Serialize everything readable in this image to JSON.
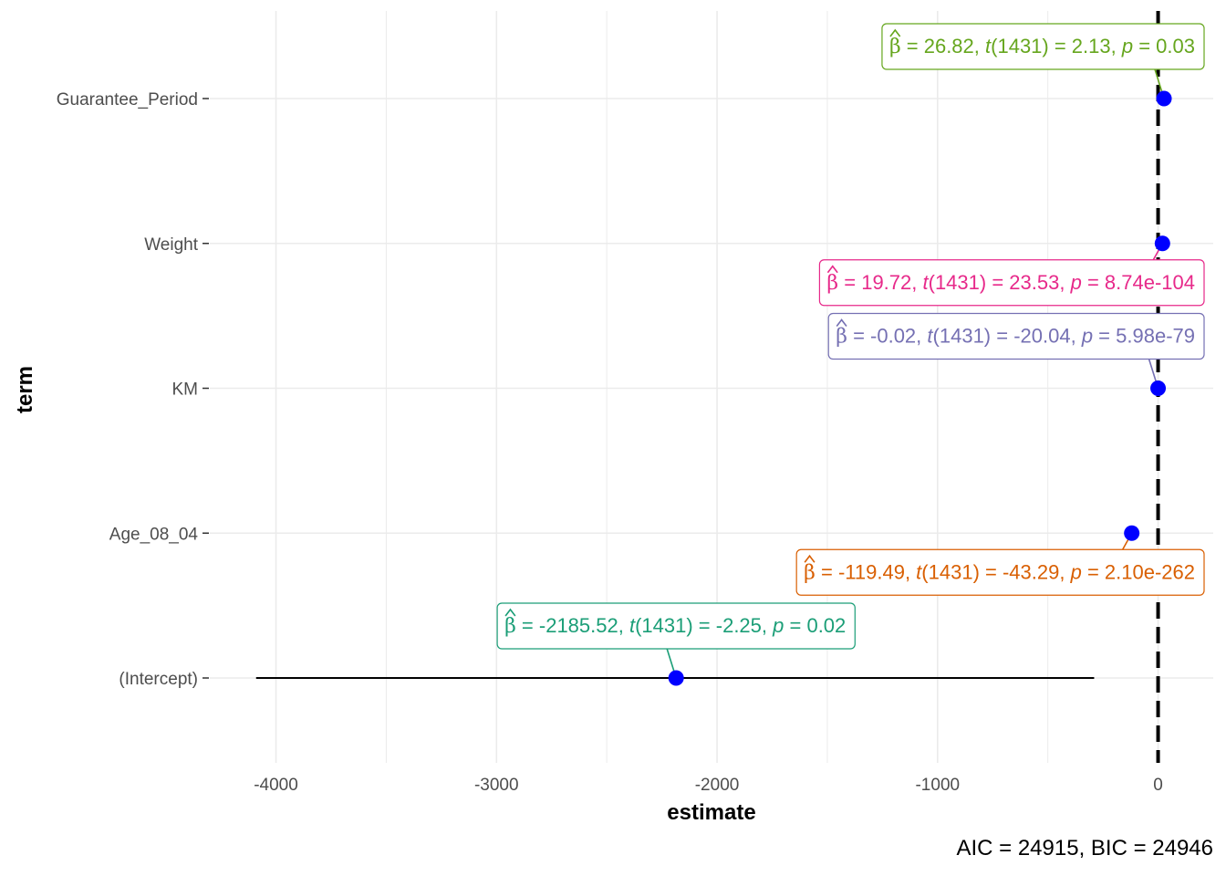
{
  "chart_data": {
    "type": "dot-whisker",
    "xlabel": "estimate",
    "ylabel": "term",
    "xlim": [
      -4300,
      250
    ],
    "x_ticks": [
      -4000,
      -3000,
      -2000,
      -1000,
      0
    ],
    "x_tick_labels": [
      "-4000",
      "-3000",
      "-2000",
      "-1000",
      "0"
    ],
    "reference_line": 0,
    "grid": true,
    "caption": "AIC = 24915, BIC = 24946",
    "point_color": "#0000ff",
    "terms": [
      {
        "term": "(Intercept)",
        "estimate": -2185.52,
        "ci_low": -4090,
        "ci_high": -290,
        "label": "β̂ = -2185.52, t(1431) = -2.25, p = 0.02",
        "label_color": "#1b9e77",
        "label_side": "above"
      },
      {
        "term": "Age_08_04",
        "estimate": -119.49,
        "ci_low": -124.9,
        "ci_high": -114.1,
        "label": "β̂ = -119.49, t(1431) = -43.29, p = 2.10e-262",
        "label_color": "#d95f02",
        "label_side": "below"
      },
      {
        "term": "KM",
        "estimate": -0.02,
        "ci_low": -0.022,
        "ci_high": -0.018,
        "label": "β̂ = -0.02, t(1431) = -20.04, p = 5.98e-79",
        "label_color": "#7570b3",
        "label_side": "above"
      },
      {
        "term": "Weight",
        "estimate": 19.72,
        "ci_low": 18.1,
        "ci_high": 21.4,
        "label": "β̂ = 19.72, t(1431) = 23.53, p = 8.74e-104",
        "label_color": "#e7298a",
        "label_side": "below"
      },
      {
        "term": "Guarantee_Period",
        "estimate": 26.82,
        "ci_low": 2.1,
        "ci_high": 51.5,
        "label": "β̂ = 26.82, t(1431) = 2.13, p = 0.03",
        "label_color": "#66a61e",
        "label_side": "above"
      }
    ]
  }
}
